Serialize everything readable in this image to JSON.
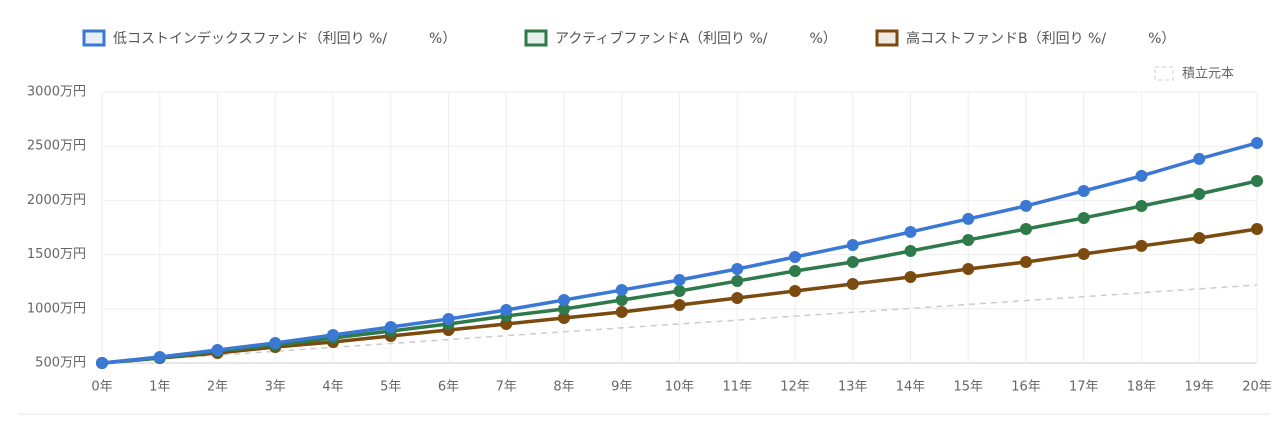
{
  "chart_data": {
    "type": "line",
    "categories": [
      "0年",
      "1年",
      "2年",
      "3年",
      "4年",
      "5年",
      "6年",
      "7年",
      "8年",
      "9年",
      "10年",
      "11年",
      "12年",
      "13年",
      "14年",
      "15年",
      "16年",
      "17年",
      "18年",
      "19年",
      "20年"
    ],
    "series": [
      {
        "name": "低コストインデックスファンド（利回り %/　　　%）",
        "color": "#3a78d4",
        "values": [
          500,
          555,
          620,
          685,
          758,
          832,
          906,
          989,
          1081,
          1173,
          1266,
          1367,
          1478,
          1589,
          1709,
          1829,
          1949,
          2087,
          2226,
          2383,
          2530
        ]
      },
      {
        "name": "アクティブファンドA（利回り %/　　　%）",
        "color": "#2e7a4a",
        "values": [
          500,
          546,
          611,
          666,
          731,
          795,
          860,
          934,
          998,
          1081,
          1164,
          1256,
          1349,
          1432,
          1533,
          1635,
          1736,
          1838,
          1948,
          2059,
          2179
        ]
      },
      {
        "name": "高コストファンドB（利回り %/　　　%）",
        "color": "#7a4a0e",
        "values": [
          500,
          546,
          592,
          648,
          694,
          749,
          804,
          860,
          915,
          970,
          1035,
          1100,
          1164,
          1229,
          1293,
          1367,
          1432,
          1506,
          1580,
          1653,
          1736
        ]
      },
      {
        "name": "積立元本",
        "color": "#cccccc",
        "dashed": true,
        "values": [
          500,
          536,
          572,
          608,
          644,
          680,
          716,
          752,
          788,
          824,
          860,
          896,
          932,
          968,
          1004,
          1040,
          1076,
          1112,
          1148,
          1184,
          1220
        ]
      }
    ],
    "ylim": [
      500,
      3000
    ],
    "yticks": [
      {
        "value": 500,
        "label": "500万円"
      },
      {
        "value": 1000,
        "label": "1000万円"
      },
      {
        "value": 1500,
        "label": "1500万円"
      },
      {
        "value": 2000,
        "label": "2000万円"
      },
      {
        "value": 2500,
        "label": "2500万円"
      },
      {
        "value": 3000,
        "label": "3000万円"
      }
    ],
    "grid": true
  }
}
